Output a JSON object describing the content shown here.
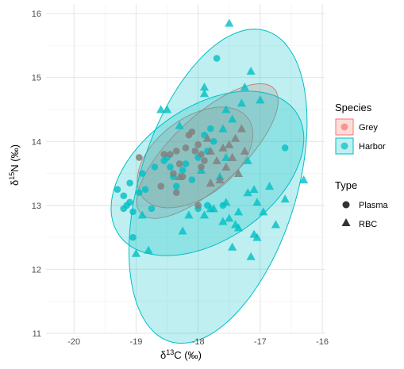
{
  "chart_data": {
    "type": "scatter",
    "title": "",
    "xlabel": {
      "delta": "δ",
      "sup": "13",
      "rest": "C (‰)"
    },
    "ylabel": {
      "delta": "δ",
      "sup": "15",
      "rest": "N (‰)"
    },
    "xlim": [
      -20.45,
      -15.95
    ],
    "ylim": [
      11.0,
      16.15
    ],
    "x_ticks": [
      -20,
      -19,
      -18,
      -17,
      -16
    ],
    "x_tick_labels": [
      "-20",
      "-19",
      "-18",
      "-17",
      "-16"
    ],
    "y_ticks": [
      11,
      12,
      13,
      14,
      15,
      16
    ],
    "y_tick_labels": [
      "11",
      "12",
      "13",
      "14",
      "15",
      "16"
    ],
    "grid": true,
    "legend_placement": "right",
    "legends": {
      "species": {
        "title": "Species",
        "entries": [
          {
            "label": "Grey",
            "color": "#F8766D"
          },
          {
            "label": "Harbor",
            "color": "#00BFC4"
          }
        ]
      },
      "type": {
        "title": "Type",
        "entries": [
          {
            "label": "Plasma",
            "shape": "circle"
          },
          {
            "label": "RBC",
            "shape": "triangle"
          }
        ]
      }
    },
    "ellipses": [
      {
        "species": "Grey",
        "center": [
          -17.85,
          13.85
        ],
        "semi_axes": [
          1.45,
          0.55
        ],
        "angle_deg": 42.0
      },
      {
        "species": "Grey",
        "center": [
          -18.05,
          13.75
        ],
        "semi_axes": [
          1.05,
          0.62
        ],
        "angle_deg": 35.0
      },
      {
        "species": "Harbor",
        "center": [
          -17.85,
          13.5
        ],
        "semi_axes": [
          1.72,
          1.05
        ],
        "angle_deg": 33.0
      },
      {
        "species": "Harbor",
        "center": [
          -17.68,
          13.3
        ],
        "semi_axes": [
          2.55,
          1.26
        ],
        "angle_deg": 72.0
      }
    ],
    "series": [
      {
        "name": "Grey Plasma",
        "species": "Grey",
        "type": "Plasma",
        "x": [
          -18.95,
          -18.55,
          -18.45,
          -18.35,
          -18.3,
          -18.2,
          -18.15,
          -18.1,
          -18.05,
          -18.0,
          -17.95,
          -17.9,
          -18.4,
          -18.25,
          -18.6,
          -18.35,
          -18.0,
          -17.95
        ],
        "y": [
          13.75,
          13.8,
          13.8,
          13.85,
          13.65,
          13.9,
          14.1,
          14.15,
          13.85,
          13.95,
          13.8,
          13.7,
          13.5,
          13.45,
          13.3,
          13.2,
          13.0,
          13.6
        ]
      },
      {
        "name": "Grey RBC",
        "species": "Grey",
        "type": "RBC",
        "x": [
          -17.85,
          -17.8,
          -17.6,
          -17.5,
          -17.4,
          -17.3,
          -17.7,
          -17.55,
          -17.45,
          -17.35,
          -17.25,
          -17.8,
          -17.65,
          -18.3
        ],
        "y": [
          14.05,
          13.85,
          13.9,
          13.95,
          14.05,
          14.2,
          13.7,
          13.6,
          13.75,
          13.5,
          13.85,
          13.35,
          13.4,
          13.45
        ]
      },
      {
        "name": "Harbor Plasma",
        "species": "Harbor",
        "type": "Plasma",
        "x": [
          -19.3,
          -19.2,
          -19.15,
          -19.1,
          -19.05,
          -18.95,
          -18.9,
          -18.85,
          -18.75,
          -18.7,
          -19.2,
          -19.1,
          -18.55,
          -18.5,
          -18.45,
          -18.4,
          -18.35,
          -18.25,
          -18.2,
          -18.1,
          -18.0,
          -17.85,
          -17.8,
          -17.75,
          -16.6,
          -17.7,
          -17.9,
          -18.0,
          -17.6,
          -19.05,
          -17.85
        ],
        "y": [
          13.25,
          13.15,
          13.0,
          13.05,
          12.9,
          13.2,
          13.5,
          13.25,
          12.95,
          13.6,
          12.95,
          13.35,
          13.7,
          13.75,
          13.6,
          13.45,
          13.3,
          13.55,
          13.65,
          13.4,
          13.75,
          13.85,
          14.2,
          14.0,
          13.9,
          15.3,
          14.1,
          12.95,
          13.0,
          12.5,
          13.0
        ]
      },
      {
        "name": "Harbor RBC",
        "species": "Harbor",
        "type": "RBC",
        "x": [
          -17.5,
          -17.15,
          -18.8,
          -17.9,
          -17.9,
          -17.55,
          -17.3,
          -17.25,
          -17.0,
          -17.6,
          -17.45,
          -17.55,
          -17.65,
          -17.2,
          -17.1,
          -17.05,
          -16.95,
          -16.85,
          -16.6,
          -16.75,
          -16.3,
          -17.35,
          -17.5,
          -18.15,
          -17.6,
          -17.8,
          -17.9,
          -18.25,
          -19.0,
          -17.15,
          -17.05,
          -17.45,
          -17.4,
          -17.55,
          -17.75,
          -17.95,
          -18.3,
          -18.5,
          -18.6,
          -18.9,
          -17.2,
          -17.35,
          -17.1
        ],
        "y": [
          15.85,
          15.1,
          12.3,
          14.85,
          14.75,
          14.5,
          14.6,
          14.85,
          14.65,
          14.2,
          14.35,
          13.75,
          13.45,
          13.2,
          13.25,
          13.05,
          12.9,
          13.3,
          13.1,
          12.7,
          13.4,
          12.9,
          12.8,
          12.85,
          12.75,
          12.95,
          12.85,
          12.6,
          12.25,
          12.2,
          12.5,
          12.35,
          12.7,
          13.05,
          12.95,
          13.55,
          14.25,
          14.5,
          14.5,
          12.85,
          13.7,
          12.65,
          12.55
        ]
      }
    ]
  }
}
